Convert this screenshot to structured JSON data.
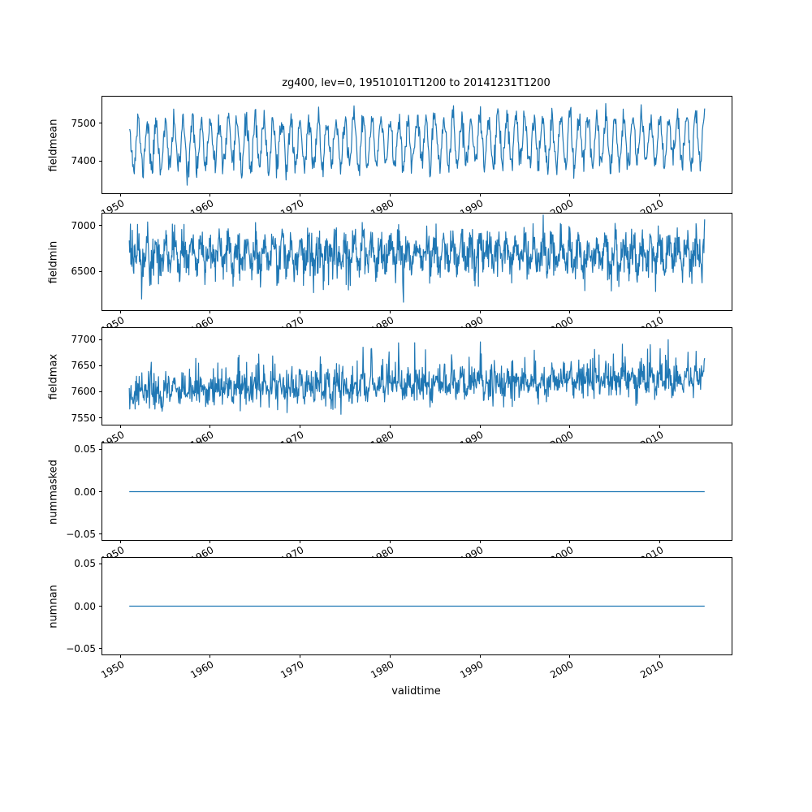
{
  "chart_data": {
    "type": "line",
    "title": "zg400, lev=0, 19510101T1200 to 20141231T1200",
    "xlabel": "validtime",
    "line_color": "#1f77b4",
    "x_start": 1951.0,
    "x_end": 2015.0,
    "xlim": [
      1948,
      2018
    ],
    "xticks": [
      {
        "value": 1950,
        "label": "1950"
      },
      {
        "value": 1960,
        "label": "1960"
      },
      {
        "value": 1970,
        "label": "1970"
      },
      {
        "value": 1980,
        "label": "1980"
      },
      {
        "value": 1990,
        "label": "1990"
      },
      {
        "value": 2000,
        "label": "2000"
      },
      {
        "value": 2010,
        "label": "2010"
      }
    ],
    "subplots": [
      {
        "ylabel": "fieldmean",
        "ylim": [
          7315,
          7570
        ],
        "yticks": [
          {
            "value": 7400,
            "label": "7400"
          },
          {
            "value": 7500,
            "label": "7500"
          }
        ],
        "signal": {
          "base": 7440,
          "trend_per_year": 0.3,
          "seasonal_amp": 62,
          "noise_amp": 17,
          "spike_amp": 0,
          "spike_prob": 0,
          "spike_sign": 1,
          "points_per_year": 16,
          "seed": 11
        }
      },
      {
        "ylabel": "fieldmin",
        "ylim": [
          6080,
          7130
        ],
        "yticks": [
          {
            "value": 6500,
            "label": "6500"
          },
          {
            "value": 7000,
            "label": "7000"
          }
        ],
        "signal": {
          "base": 6700,
          "trend_per_year": 0.0,
          "seasonal_amp": 130,
          "noise_amp": 100,
          "spike_amp": 260,
          "spike_prob": 0.07,
          "spike_sign": -1,
          "points_per_year": 24,
          "seed": 22
        }
      },
      {
        "ylabel": "fieldmax",
        "ylim": [
          7537,
          7722
        ],
        "yticks": [
          {
            "value": 7550,
            "label": "7550"
          },
          {
            "value": 7600,
            "label": "7600"
          },
          {
            "value": 7650,
            "label": "7650"
          },
          {
            "value": 7700,
            "label": "7700"
          }
        ],
        "signal": {
          "base": 7598,
          "trend_per_year": 0.45,
          "seasonal_amp": 10,
          "noise_amp": 15,
          "spike_amp": 55,
          "spike_prob": 0.1,
          "spike_sign": 1,
          "points_per_year": 20,
          "seed": 33
        }
      },
      {
        "ylabel": "nummasked",
        "ylim": [
          -0.057,
          0.057
        ],
        "yticks": [
          {
            "value": -0.05,
            "label": "−0.05"
          },
          {
            "value": 0.0,
            "label": "0.00"
          },
          {
            "value": 0.05,
            "label": "0.05"
          }
        ],
        "signal": {
          "base": 0,
          "trend_per_year": 0,
          "seasonal_amp": 0,
          "noise_amp": 0,
          "spike_amp": 0,
          "spike_prob": 0,
          "spike_sign": 1,
          "points_per_year": 4,
          "seed": 44
        }
      },
      {
        "ylabel": "numnan",
        "ylim": [
          -0.057,
          0.057
        ],
        "yticks": [
          {
            "value": -0.05,
            "label": "−0.05"
          },
          {
            "value": 0.0,
            "label": "0.00"
          },
          {
            "value": 0.05,
            "label": "0.05"
          }
        ],
        "signal": {
          "base": 0,
          "trend_per_year": 0,
          "seasonal_amp": 0,
          "noise_amp": 0,
          "spike_amp": 0,
          "spike_prob": 0,
          "spike_sign": 1,
          "points_per_year": 4,
          "seed": 55
        }
      }
    ]
  }
}
